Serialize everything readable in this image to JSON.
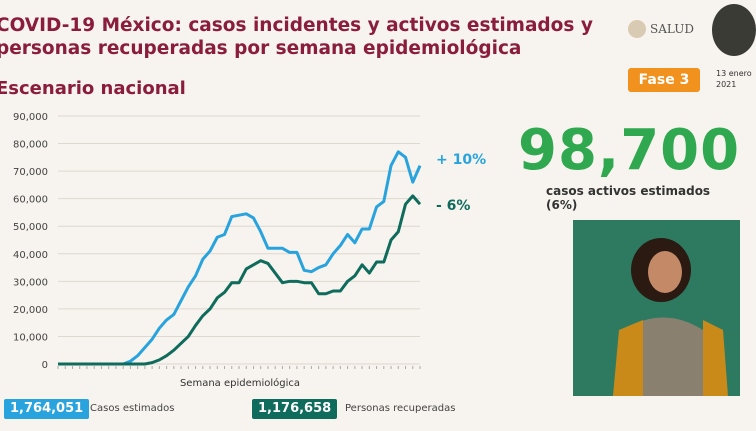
{
  "header": {
    "title_line1": "COVID-19 México: casos incidentes y activos estimados y",
    "title_line2": "personas recuperadas por semana epidemiológica",
    "subtitle": "Escenario nacional",
    "logo_text": "SALUD",
    "phase": "Fase 3",
    "date": "13 enero\n2021"
  },
  "active": {
    "value": "98,700",
    "label": "casos activos estimados (6%)"
  },
  "totals": {
    "cases_value": "1,764,051",
    "cases_label": "Casos estimados",
    "recovered_value": "1,176,658",
    "recovered_label": "Personas recuperadas"
  },
  "colors": {
    "cases": "#29a3dd",
    "recovered": "#0f6b5c",
    "accent": "#8a1c3c"
  },
  "chart_data": {
    "type": "line",
    "title": "",
    "xlabel": "Semana epidemiológica",
    "ylabel": "",
    "ylim": [
      0,
      90000
    ],
    "yticks": [
      "0",
      "10,000",
      "20,000",
      "30,000",
      "40,000",
      "50,000",
      "60,000",
      "70,000",
      "80,000",
      "90,000"
    ],
    "grid": true,
    "annotations": {
      "cases_change": "+ 10%",
      "recovered_change": "- 6%"
    },
    "series": [
      {
        "name": "Casos estimados",
        "values": [
          0,
          0,
          0,
          0,
          0,
          0,
          0,
          0,
          0,
          0,
          1000,
          3000,
          6000,
          9000,
          13000,
          16000,
          18000,
          23000,
          28000,
          32000,
          38000,
          41000,
          46000,
          47000,
          53500,
          54000,
          54500,
          53000,
          48000,
          42000,
          42000,
          42000,
          40500,
          40500,
          34000,
          33500,
          35000,
          36000,
          40000,
          43000,
          47000,
          44000,
          49000,
          49000,
          57000,
          59000,
          72000,
          77000,
          75000,
          66000,
          72000
        ]
      },
      {
        "name": "Personas recuperadas",
        "values": [
          0,
          0,
          0,
          0,
          0,
          0,
          0,
          0,
          0,
          0,
          0,
          0,
          0,
          500,
          1500,
          3000,
          5000,
          7500,
          10000,
          14000,
          17500,
          20000,
          24000,
          26000,
          29500,
          29500,
          34500,
          36000,
          37500,
          36500,
          33000,
          29500,
          30000,
          30000,
          29500,
          29500,
          25500,
          25500,
          26500,
          26500,
          30000,
          32000,
          36000,
          33000,
          37000,
          37000,
          45000,
          48000,
          58000,
          61000,
          58000
        ]
      }
    ]
  }
}
